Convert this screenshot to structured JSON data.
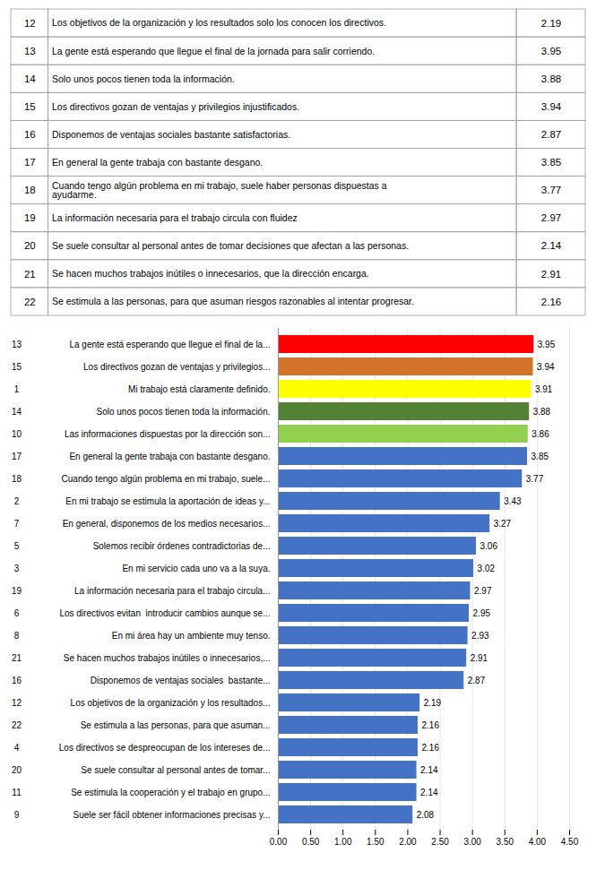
{
  "chart_data": [
    {
      "type": "table",
      "numbers": [
        12,
        13,
        14,
        15,
        16,
        17,
        18,
        19,
        20,
        21,
        22
      ],
      "categories": [
        "Los objetivos de la organización y los resultados solo los conocen los directivos.",
        "La gente está esperando que llegue el final de la jornada para salir corriendo.",
        "Solo unos pocos tienen toda la información.",
        "Los directivos gozan de ventajas y privilegios injustificados.",
        "Disponemos de ventajas sociales bastante satisfactorias.",
        "En general la gente trabaja con bastante desgano.",
        "Cuando tengo algún problema en mi trabajo, suele haber personas dispuestas a\nayudarme.",
        "La información necesaria para el trabajo circula con fluidez",
        "Se suele consultar al personal antes de tomar decisiones que afectan a las personas.",
        "Se hacen muchos trabajos inútiles o innecesarios, que la dirección encarga.",
        "Se estimula a las personas, para que asuman riesgos razonables al intentar progresar."
      ],
      "values": [
        2.19,
        3.95,
        3.88,
        3.94,
        2.87,
        3.85,
        3.77,
        2.97,
        2.14,
        2.91,
        2.16
      ]
    },
    {
      "type": "bar",
      "orientation": "horizontal",
      "numbers": [
        "13",
        "15",
        "1",
        "14",
        "10",
        "17",
        "18",
        "2",
        "7",
        "5",
        "3",
        "19",
        "6",
        "8",
        "21",
        "16",
        "12",
        "22",
        "4",
        "20",
        "11",
        "9"
      ],
      "categories": [
        "La gente está esperando que llegue el final de la...",
        "Los directivos gozan de ventajas y privilegios...",
        "Mi trabajo está claramente definido.",
        "Solo unos pocos tienen toda la información.",
        "Las informaciones dispuestas por la dirección son...",
        "En general la gente trabaja con bastante desgano.",
        "Cuando tengo algún problema en mi trabajo, suele...",
        "En mi trabajo se estimula la aportación de ideas y...",
        "En general, disponemos de los medios necesarios...",
        "Solemos recibir órdenes contradictorias de...",
        "En mi servicio cada uno va a la suya.",
        "La información necesaria para el trabajo circula...",
        "Los directivos evitan  introducir cambios aunque se...",
        "En mi área hay un ambiente muy tenso.",
        "Se hacen muchos trabajos inútiles o innecesarios,...",
        "Disponemos de ventajas sociales  bastante...",
        "Los objetivos de la organización y los resultados...",
        "Se estimula a las personas, para que asuman...",
        "Los directivos se despreocupan de los intereses de...",
        "Se suele consultar al personal antes de tomar...",
        "Se estimula la cooperación y el trabajo en grupo...",
        "Suele ser fácil obtener informaciones precisas y..."
      ],
      "values": [
        3.95,
        3.94,
        3.91,
        3.88,
        3.86,
        3.85,
        3.77,
        3.43,
        3.27,
        3.06,
        3.02,
        2.97,
        2.95,
        2.93,
        2.91,
        2.87,
        2.19,
        2.16,
        2.16,
        2.14,
        2.14,
        2.08
      ],
      "colors": [
        "#ff0000",
        "#d4732a",
        "#ffff00",
        "#548235",
        "#92d050",
        "#4472c4",
        "#4472c4",
        "#4472c4",
        "#4472c4",
        "#4472c4",
        "#4472c4",
        "#4472c4",
        "#4472c4",
        "#4472c4",
        "#4472c4",
        "#4472c4",
        "#4472c4",
        "#4472c4",
        "#4472c4",
        "#4472c4",
        "#4472c4",
        "#4472c4"
      ],
      "xlim": [
        0,
        4.5
      ],
      "xticks": [
        {
          "value": 0.0,
          "label": "0.00"
        },
        {
          "value": 0.5,
          "label": "0.50"
        },
        {
          "value": 1.0,
          "label": "1.00"
        },
        {
          "value": 1.5,
          "label": "1.50"
        },
        {
          "value": 2.0,
          "label": "2.00"
        },
        {
          "value": 2.5,
          "label": "2.50"
        },
        {
          "value": 3.0,
          "label": "3.00"
        },
        {
          "value": 3.5,
          "label": "3.50"
        },
        {
          "value": 4.0,
          "label": "4.00"
        },
        {
          "value": 4.5,
          "label": "4.50"
        }
      ],
      "grid": true,
      "data_labels": true
    }
  ]
}
